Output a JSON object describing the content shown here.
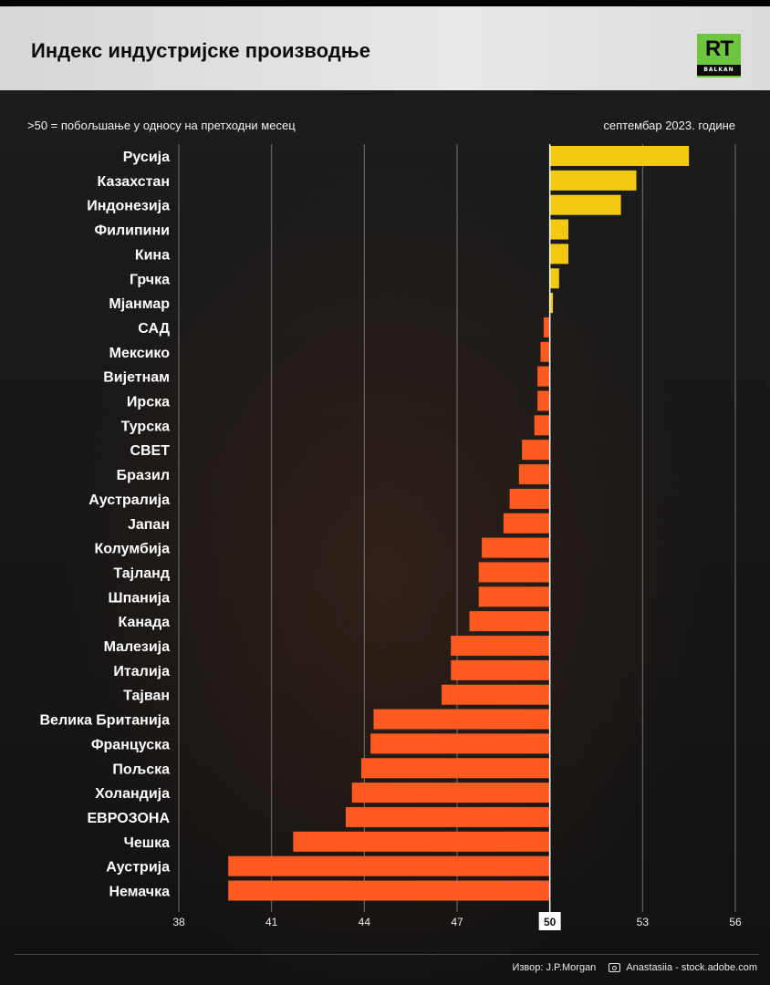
{
  "header": {
    "title": "Индекс индустријске производње"
  },
  "logo": {
    "text": "RT",
    "sub": "BALKAN"
  },
  "subtitle": ">50 = побољшање у односу на претходни месец",
  "date_label": "септембар 2023. године",
  "footer": {
    "source": "Извор: J.P.Morgan",
    "photo_credit": "Anastasiia - stock.adobe.com",
    "photo_icon": "camera-icon"
  },
  "colors": {
    "positive": "#f2c811",
    "negative": "#ff5a1f",
    "grid": "#8a8a8a",
    "baseline_label_bg": "#ffffff"
  },
  "chart_data": {
    "type": "bar",
    "orientation": "horizontal",
    "baseline": 50,
    "xlim": [
      38,
      56
    ],
    "xticks": [
      38,
      41,
      44,
      47,
      50,
      53,
      56
    ],
    "categories": [
      "Русија",
      "Казахстан",
      "Индонезија",
      "Филипини",
      "Кина",
      "Грчка",
      "Мјанмар",
      "САД",
      "Мексико",
      "Вијетнам",
      "Ирска",
      "Турска",
      "СВЕТ",
      "Бразил",
      "Аустралија",
      "Јапан",
      "Колумбија",
      "Тајланд",
      "Шпанија",
      "Канада",
      "Малезија",
      "Италија",
      "Тајван",
      "Велика Британија",
      "Француска",
      "Пољска",
      "Холандија",
      "ЕВРОЗОНА",
      "Чешка",
      "Аустрија",
      "Немачка"
    ],
    "values": [
      54.5,
      52.8,
      52.3,
      50.6,
      50.6,
      50.3,
      50.1,
      49.8,
      49.7,
      49.6,
      49.6,
      49.5,
      49.1,
      49.0,
      48.7,
      48.5,
      47.8,
      47.7,
      47.7,
      47.4,
      46.8,
      46.8,
      46.5,
      44.3,
      44.2,
      43.9,
      43.6,
      43.4,
      41.7,
      39.6,
      39.6
    ]
  }
}
